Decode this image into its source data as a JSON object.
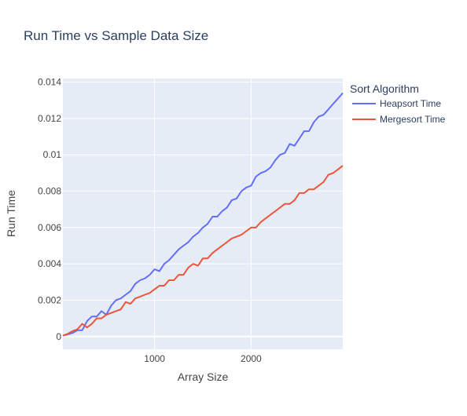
{
  "chart_data": {
    "type": "line",
    "title": "Run Time vs Sample Data Size",
    "xlabel": "Array Size",
    "ylabel": "Run Time",
    "xlim": [
      50,
      2950
    ],
    "ylim": [
      -0.0007,
      0.0142
    ],
    "x_ticks": [
      1000,
      2000
    ],
    "x_tick_labels": [
      "1000",
      "2000"
    ],
    "y_ticks": [
      0,
      0.002,
      0.004,
      0.006,
      0.008,
      0.01,
      0.012,
      0.014
    ],
    "y_tick_labels": [
      "0",
      "0.002",
      "0.004",
      "0.006",
      "0.008",
      "0.01",
      "0.012",
      "0.014"
    ],
    "grid": true,
    "legend_title": "Sort Algorithm",
    "legend_position": "right",
    "colors": {
      "plot_bg": "#e5ecf6",
      "grid": "#ffffff",
      "text": "#2a3f5f",
      "axis_text": "#444444"
    },
    "x": [
      50,
      100,
      150,
      200,
      250,
      300,
      350,
      400,
      450,
      500,
      550,
      600,
      650,
      700,
      750,
      800,
      850,
      900,
      950,
      1000,
      1050,
      1100,
      1150,
      1200,
      1250,
      1300,
      1350,
      1400,
      1450,
      1500,
      1550,
      1600,
      1650,
      1700,
      1750,
      1800,
      1850,
      1900,
      1950,
      2000,
      2050,
      2100,
      2150,
      2200,
      2250,
      2300,
      2350,
      2400,
      2450,
      2500,
      2550,
      2600,
      2650,
      2700,
      2750,
      2800,
      2850,
      2900,
      2950
    ],
    "series": [
      {
        "name": "Heapsort Time",
        "color": "#636efa",
        "values": [
          5e-05,
          0.00012,
          0.0002,
          0.00035,
          0.00035,
          0.00085,
          0.0011,
          0.0011,
          0.0014,
          0.0012,
          0.0017,
          0.002,
          0.0021,
          0.0023,
          0.0025,
          0.0029,
          0.0031,
          0.0032,
          0.0034,
          0.0037,
          0.0036,
          0.004,
          0.0042,
          0.0045,
          0.0048,
          0.005,
          0.0052,
          0.0055,
          0.0057,
          0.006,
          0.0062,
          0.0066,
          0.0066,
          0.0069,
          0.0071,
          0.0075,
          0.0076,
          0.008,
          0.0082,
          0.0083,
          0.0088,
          0.009,
          0.0091,
          0.0093,
          0.0097,
          0.01,
          0.0101,
          0.0106,
          0.0105,
          0.0109,
          0.0113,
          0.0113,
          0.0118,
          0.0121,
          0.0122,
          0.0125,
          0.0128,
          0.0131,
          0.0134
        ]
      },
      {
        "name": "Mergesort Time",
        "color": "#ef553b",
        "values": [
          5e-05,
          0.00015,
          0.0003,
          0.0004,
          0.0007,
          0.0005,
          0.0007,
          0.001,
          0.001,
          0.0012,
          0.0013,
          0.0014,
          0.0015,
          0.0019,
          0.0018,
          0.0021,
          0.0022,
          0.0023,
          0.0024,
          0.0026,
          0.0028,
          0.0028,
          0.0031,
          0.0031,
          0.0034,
          0.0034,
          0.0038,
          0.004,
          0.0039,
          0.0043,
          0.0043,
          0.0046,
          0.0048,
          0.005,
          0.0052,
          0.0054,
          0.0055,
          0.0056,
          0.0058,
          0.006,
          0.006,
          0.0063,
          0.0065,
          0.0067,
          0.0069,
          0.0071,
          0.0073,
          0.0073,
          0.0075,
          0.0079,
          0.0079,
          0.0081,
          0.0081,
          0.0083,
          0.0085,
          0.0089,
          0.009,
          0.0092,
          0.0094
        ]
      }
    ]
  }
}
